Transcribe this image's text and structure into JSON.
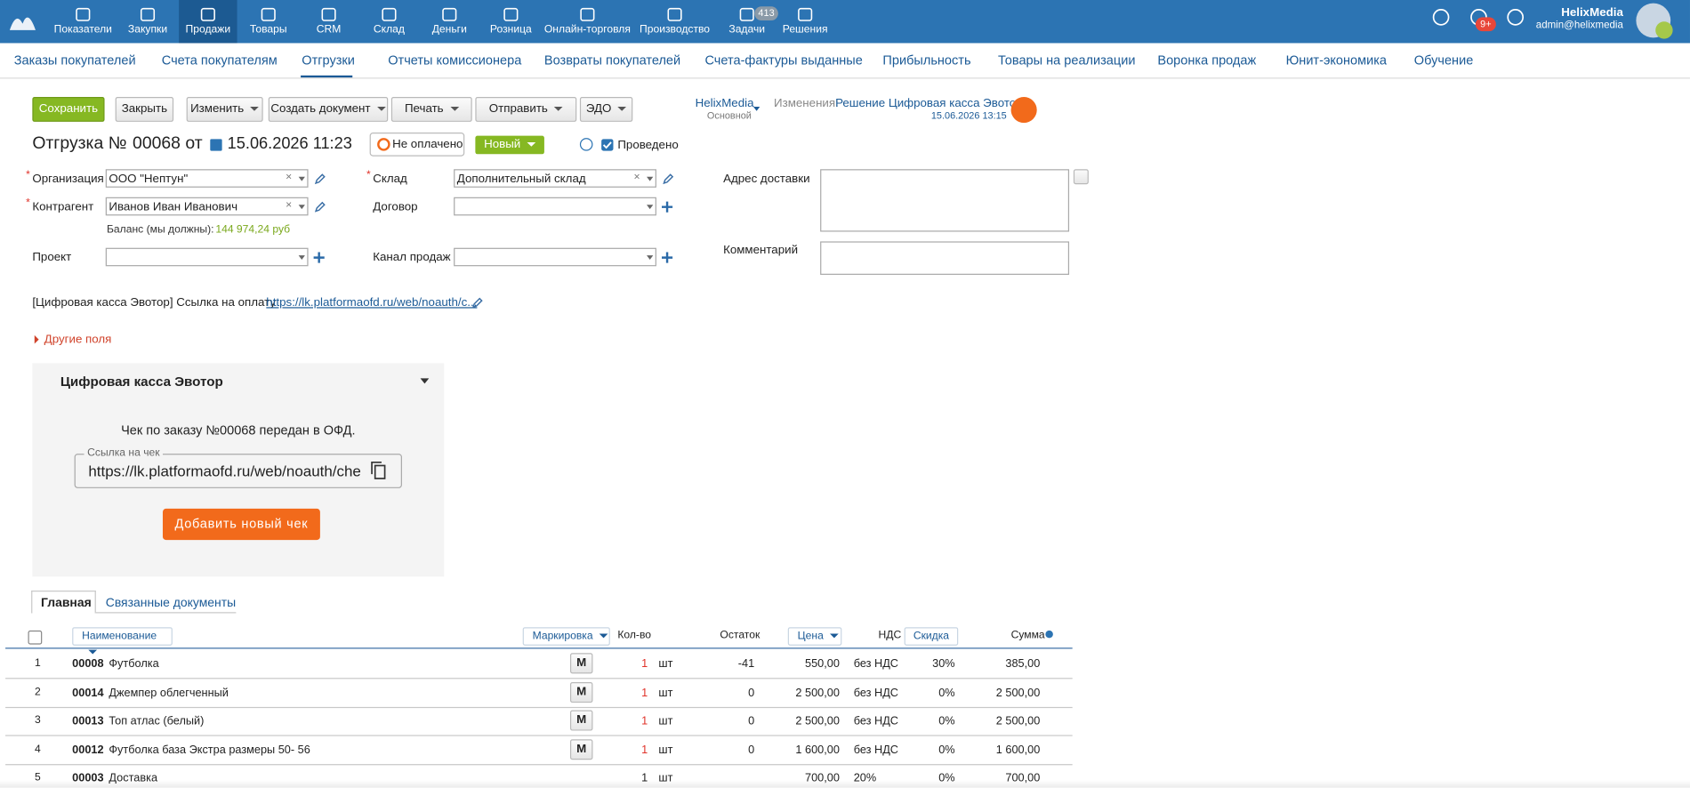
{
  "topnav": {
    "items": [
      "Показатели",
      "Закупки",
      "Продажи",
      "Товары",
      "CRM",
      "Склад",
      "Деньги",
      "Розница",
      "Онлайн-торговля",
      "Производство",
      "Задачи",
      "Решения"
    ],
    "active": 2,
    "tasks_badge": "413",
    "notif_badge": "9+",
    "user_name": "HelixMedia",
    "user_email": "admin@helixmedia"
  },
  "subnav": {
    "items": [
      "Заказы покупателей",
      "Счета покупателям",
      "Отгрузки",
      "Отчеты комиссионера",
      "Возвраты покупателей",
      "Счета-фактуры выданные",
      "Прибыльность",
      "Товары на реализации",
      "Воронка продаж",
      "Юнит-экономика",
      "Обучение"
    ],
    "active": 2
  },
  "toolbar": {
    "buttons": [
      "Сохранить",
      "Закрыть",
      "Изменить",
      "Создать документ",
      "Печать",
      "Отправить",
      "ЭДО"
    ],
    "account": "HelixMedia",
    "account_sub": "Основной",
    "changes_label": "Изменения:",
    "changes_link": "Решение Цифровая касса Эвотор",
    "changes_date": "15.06.2026 13:15"
  },
  "header": {
    "title": "Отгрузка №",
    "number": "00068",
    "from": "от",
    "date": "15.06.2026 11:23",
    "payment": "Не оплачено",
    "status": "Новый",
    "posted": "Проведено"
  },
  "fields": {
    "organization": {
      "label": "Организация",
      "value": "ООО \"Нептун\""
    },
    "counterparty": {
      "label": "Контрагент",
      "value": "Иванов Иван Иванович"
    },
    "project": {
      "label": "Проект"
    },
    "warehouse": {
      "label": "Склад",
      "value": "Дополнительный склад"
    },
    "contract": {
      "label": "Договор"
    },
    "channel": {
      "label": "Канал продаж"
    },
    "address": {
      "label": "Адрес доставки"
    },
    "comment": {
      "label": "Комментарий"
    }
  },
  "balance": {
    "label": "Баланс (мы должны):",
    "value": "144 974,24 руб"
  },
  "link": {
    "label": "[Цифровая касса Эвотор] Ссылка на оплату",
    "url": "https://lk.platformaofd.ru/web/noauth/c..."
  },
  "other_fields": "Другие поля",
  "widget": {
    "title": "Цифровая касса Эвотор",
    "message": "Чек по заказу №00068 передан в ОФД.",
    "input_label": "Ссылка на чек",
    "input_value": "https://lk.platformaofd.ru/web/noauth/che",
    "button": "Добавить новый чек"
  },
  "tabs": [
    "Главная",
    "Связанные документы"
  ],
  "table": {
    "columns": {
      "name": "Наименование",
      "marking": "Маркировка",
      "qty": "Кол-во",
      "stock": "Остаток",
      "price": "Цена",
      "vat": "НДС",
      "discount": "Скидка",
      "sum": "Сумма"
    },
    "rows": [
      {
        "n": "1",
        "code": "00008",
        "name": "Футболка",
        "mark": "M",
        "qty": "1",
        "unit": "шт",
        "stock": "-41",
        "price": "550,00",
        "vat": "без НДС",
        "discount": "30%",
        "sum": "385,00"
      },
      {
        "n": "2",
        "code": "00014",
        "name": "Джемпер облегченный",
        "mark": "M",
        "qty": "1",
        "unit": "шт",
        "stock": "0",
        "price": "2 500,00",
        "vat": "без НДС",
        "discount": "0%",
        "sum": "2 500,00"
      },
      {
        "n": "3",
        "code": "00013",
        "name": "Топ атлас (белый)",
        "mark": "M",
        "qty": "1",
        "unit": "шт",
        "stock": "0",
        "price": "2 500,00",
        "vat": "без НДС",
        "discount": "0%",
        "sum": "2 500,00"
      },
      {
        "n": "4",
        "code": "00012",
        "name": "Футболка база Экстра размеры 50- 56",
        "mark": "M",
        "qty": "1",
        "unit": "шт",
        "stock": "0",
        "price": "1 600,00",
        "vat": "без НДС",
        "discount": "0%",
        "sum": "1 600,00"
      },
      {
        "n": "5",
        "code": "00003",
        "name": "Доставка",
        "qty": "1",
        "unit": "шт",
        "price": "700,00",
        "vat": "20%",
        "discount": "0%",
        "sum": "700,00"
      }
    ]
  }
}
